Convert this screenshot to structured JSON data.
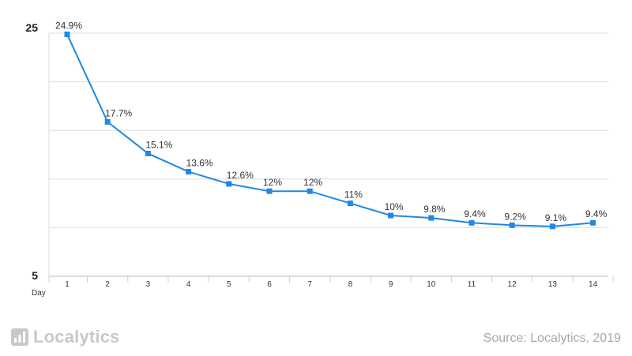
{
  "chart_data": {
    "type": "line",
    "title": "",
    "xlabel": "Day",
    "ylabel": "",
    "ylim": [
      5,
      25
    ],
    "y_tick_labels": [
      "25",
      "5"
    ],
    "grid": "horizontal",
    "color": "#1e88e5",
    "categories": [
      "1",
      "2",
      "3",
      "4",
      "5",
      "6",
      "7",
      "8",
      "9",
      "10",
      "11",
      "12",
      "13",
      "14"
    ],
    "values": [
      24.9,
      17.7,
      15.1,
      13.6,
      12.6,
      12,
      12,
      11,
      10,
      9.8,
      9.4,
      9.2,
      9.1,
      9.4
    ],
    "data_labels": [
      "24.9%",
      "17.7%",
      "15.1%",
      "13.6%",
      "12.6%",
      "12%",
      "12%",
      "11%",
      "10%",
      "9.8%",
      "9.4%",
      "9.2%",
      "9.1%",
      "9.4%"
    ]
  },
  "footer": {
    "logo_text": "Localytics",
    "source": "Source: Localytics, 2019"
  }
}
